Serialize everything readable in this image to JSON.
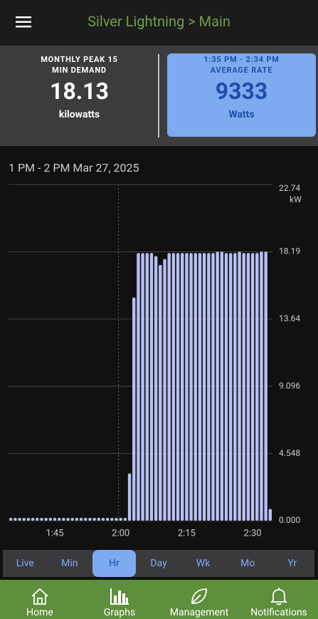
{
  "header": {
    "title": "Silver Lightning > Main"
  },
  "peak_card": {
    "label_line1": "MONTHLY PEAK 15",
    "label_line2": "MIN DEMAND",
    "value": "18.13",
    "unit": "kilowatts"
  },
  "rate_card": {
    "period": "1:35 PM - 2:34 PM",
    "label": "AVERAGE RATE",
    "value": "9333",
    "unit": "Watts"
  },
  "chart_data": {
    "type": "bar",
    "title": "1 PM - 2 PM Mar 27, 2025",
    "y_label": "kW",
    "color": "#b8c0f4",
    "categories": [
      null,
      null,
      null,
      null,
      null,
      null,
      null,
      null,
      null,
      null,
      "1:45",
      null,
      null,
      null,
      null,
      null,
      null,
      null,
      null,
      null,
      null,
      null,
      null,
      null,
      null,
      "2:00",
      null,
      null,
      null,
      null,
      null,
      null,
      null,
      null,
      null,
      null,
      null,
      null,
      null,
      null,
      "2:15",
      null,
      null,
      null,
      null,
      null,
      null,
      null,
      null,
      null,
      null,
      null,
      null,
      null,
      null,
      "2:30",
      null,
      null,
      null,
      null
    ],
    "values": [
      0.05,
      0.05,
      0.05,
      0.05,
      0.05,
      0.05,
      0.05,
      0.05,
      0.05,
      0.05,
      0.05,
      0.05,
      0.05,
      0.05,
      0.05,
      0.05,
      0.05,
      0.05,
      0.05,
      0.05,
      0.05,
      0.05,
      0.05,
      0.05,
      0.05,
      0.05,
      0.05,
      3.2,
      15.1,
      18.1,
      18.1,
      18.1,
      18.1,
      17.9,
      17.3,
      17.7,
      18.1,
      18.1,
      18.1,
      18.1,
      18.1,
      18.1,
      18.1,
      18.1,
      18.1,
      18.1,
      18.1,
      18.2,
      18.2,
      18.1,
      18.1,
      18.1,
      18.2,
      18.1,
      18.1,
      18.1,
      18.1,
      18.2,
      18.2,
      0.8
    ],
    "ylim": [
      0,
      22.74
    ],
    "yticks": [
      {
        "value": 0,
        "label": "0.000"
      },
      4.548,
      9.096,
      13.64,
      18.19,
      22.74
    ],
    "grid": true
  },
  "tabs": {
    "items": [
      "Live",
      "Min",
      "Hr",
      "Day",
      "Wk",
      "Mo",
      "Yr"
    ],
    "selected": "Hr"
  },
  "nav": {
    "items": [
      "Home",
      "Graphs",
      "Management",
      "Notifications"
    ]
  }
}
